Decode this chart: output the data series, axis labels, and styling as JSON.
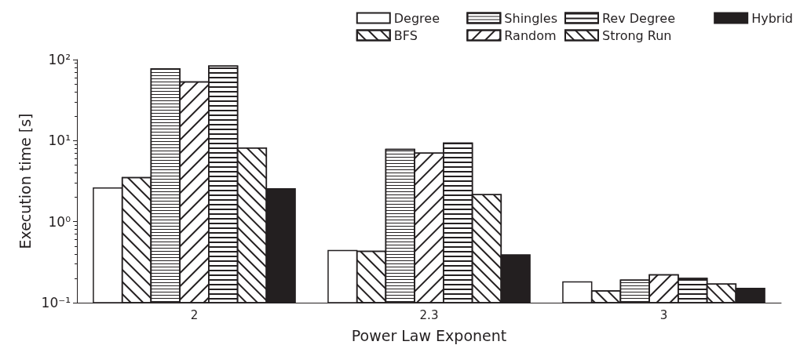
{
  "chart_data": {
    "type": "bar",
    "xlabel": "Power Law Exponent",
    "ylabel": "Execution time [s]",
    "categories": [
      "2",
      "2.3",
      "3"
    ],
    "series": [
      {
        "name": "Degree",
        "color": "#ffffff",
        "values": [
          2.6,
          0.44,
          0.18
        ]
      },
      {
        "name": "BFS",
        "color": "#ffffff",
        "values": [
          3.5,
          0.43,
          0.14
        ]
      },
      {
        "name": "Shingles",
        "color": "#ffffff",
        "values": [
          77,
          7.8,
          0.19
        ]
      },
      {
        "name": "Random",
        "color": "#ffffff",
        "values": [
          53,
          7.0,
          0.22
        ]
      },
      {
        "name": "Rev Degree",
        "color": "#ffffff",
        "values": [
          83,
          9.3,
          0.2
        ]
      },
      {
        "name": "Strong Run",
        "color": "#ffffff",
        "values": [
          8.1,
          2.15,
          0.17
        ]
      },
      {
        "name": "Hybrid",
        "color": "#231f20",
        "values": [
          2.55,
          0.39,
          0.15
        ]
      }
    ],
    "log": "y",
    "ylim": [
      0.1,
      100
    ],
    "yticks": [
      {
        "value": 0.1,
        "label": "10⁻¹"
      },
      {
        "value": 1,
        "label": "10⁰"
      },
      {
        "value": 10,
        "label": "10¹"
      },
      {
        "value": 100,
        "label": "10²"
      }
    ],
    "grid": false,
    "legend": "top right"
  }
}
